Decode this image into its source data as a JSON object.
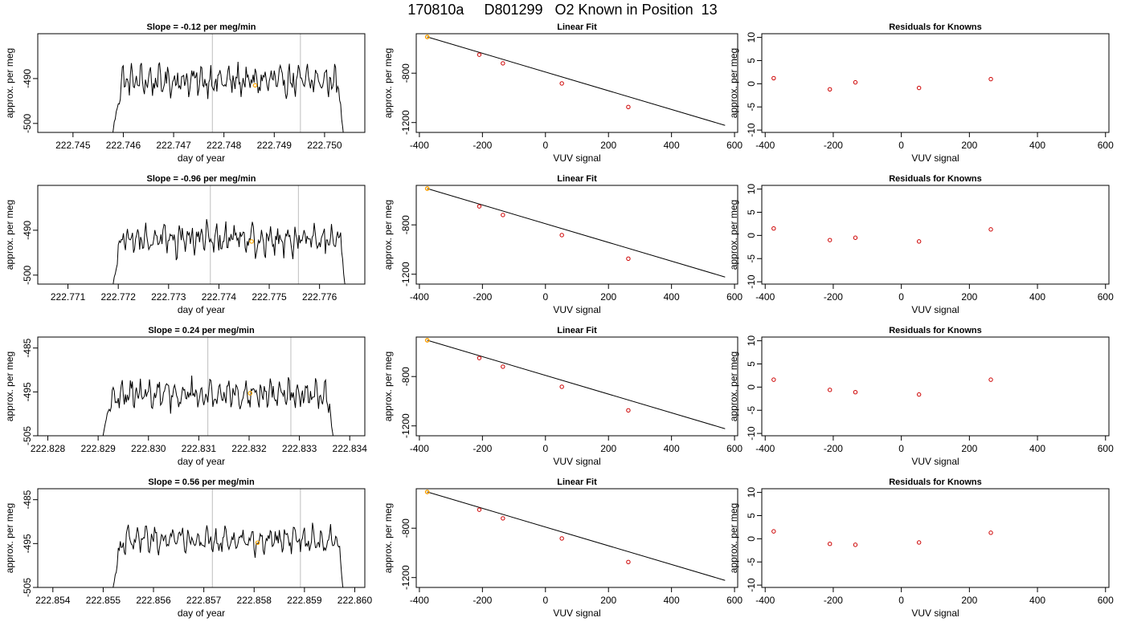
{
  "page_title": "170810a     D801299   O2 Known in Position  13",
  "chart_data": [
    {
      "type": "line",
      "panel": "timeseries",
      "title": "Slope =  -0.12  per meg/min",
      "xlabel": "day of year",
      "ylabel": "approx. per meg",
      "xlim": [
        222.7443,
        222.7508
      ],
      "ylim": [
        -502,
        -480
      ],
      "xticks": [
        "222.745",
        "222.746",
        "222.747",
        "222.748",
        "222.749",
        "222.750"
      ],
      "yticks": [
        "-490",
        "-500"
      ],
      "vlines": [
        222.74777,
        222.74952
      ],
      "series_start": 222.74578,
      "series_end": 222.75038,
      "series_mean": -490.5,
      "series_amp": 2.8,
      "highlight_point": {
        "x": 222.74862,
        "y": -491.5
      },
      "grid": false,
      "line_color": "#000000",
      "vline_color": "#bebebe",
      "highlight_color": "#ffa500"
    },
    {
      "type": "scatter",
      "panel": "fit",
      "title": "Linear Fit",
      "xlabel": "VUV signal",
      "ylabel": "approx. per meg",
      "xlim": [
        -410,
        610
      ],
      "ylim": [
        -1280,
        -480
      ],
      "xticks": [
        "-400",
        "-200",
        "0",
        "200",
        "400",
        "600"
      ],
      "yticks": [
        "-800",
        "-1200"
      ],
      "points": {
        "x": [
          -375,
          -210,
          -135,
          52,
          263
        ],
        "y": [
          -506,
          -650,
          -720,
          -883,
          -1074
        ]
      },
      "fit_line": {
        "x": [
          -375,
          570
        ],
        "y": [
          -506,
          -1223
        ]
      },
      "highlight_point": {
        "x": -375,
        "y": -506
      },
      "point_color": "#cd0000",
      "highlight_color": "#ffa500",
      "line_color": "#000000"
    },
    {
      "type": "scatter",
      "panel": "residuals",
      "title": "Residuals for Knowns",
      "xlabel": "VUV signal",
      "ylabel": "approx. per meg",
      "xlim": [
        -410,
        610
      ],
      "ylim": [
        -10.5,
        10.8
      ],
      "xticks": [
        "-400",
        "-200",
        "0",
        "200",
        "400",
        "600"
      ],
      "yticks": [
        "10",
        "5",
        "0",
        "-5",
        "-10"
      ],
      "points": {
        "x": [
          -375,
          -210,
          -135,
          52,
          263
        ],
        "y": [
          1.2,
          -1.2,
          0.3,
          -0.9,
          1.0
        ]
      },
      "point_color": "#cd0000"
    },
    {
      "type": "line",
      "panel": "timeseries",
      "title": "Slope =  -0.96  per meg/min",
      "xlabel": "day of year",
      "ylabel": "approx. per meg",
      "xlim": [
        222.7704,
        222.7769
      ],
      "ylim": [
        -502,
        -480
      ],
      "xticks": [
        "222.771",
        "222.772",
        "222.773",
        "222.774",
        "222.775",
        "222.776"
      ],
      "yticks": [
        "-490",
        "-500"
      ],
      "vlines": [
        222.77383,
        222.77558
      ],
      "series_start": 222.77188,
      "series_end": 222.77652,
      "series_mean": -492.0,
      "series_amp": 3.0,
      "highlight_point": {
        "x": 222.77465,
        "y": -492.5
      },
      "grid": false,
      "line_color": "#000000",
      "vline_color": "#bebebe",
      "highlight_color": "#ffa500"
    },
    {
      "type": "scatter",
      "panel": "fit",
      "title": "Linear Fit",
      "xlabel": "VUV signal",
      "ylabel": "approx. per meg",
      "xlim": [
        -410,
        610
      ],
      "ylim": [
        -1280,
        -480
      ],
      "xticks": [
        "-400",
        "-200",
        "0",
        "200",
        "400",
        "600"
      ],
      "yticks": [
        "-800",
        "-1200"
      ],
      "points": {
        "x": [
          -375,
          -210,
          -135,
          52,
          263
        ],
        "y": [
          -506,
          -650,
          -720,
          -883,
          -1074
        ]
      },
      "fit_line": {
        "x": [
          -375,
          570
        ],
        "y": [
          -506,
          -1223
        ]
      },
      "highlight_point": {
        "x": -375,
        "y": -506
      },
      "point_color": "#cd0000",
      "highlight_color": "#ffa500",
      "line_color": "#000000"
    },
    {
      "type": "scatter",
      "panel": "residuals",
      "title": "Residuals for Knowns",
      "xlabel": "VUV signal",
      "ylabel": "approx. per meg",
      "xlim": [
        -410,
        610
      ],
      "ylim": [
        -10.5,
        10.8
      ],
      "xticks": [
        "-400",
        "-200",
        "0",
        "200",
        "400",
        "600"
      ],
      "yticks": [
        "10",
        "5",
        "0",
        "-5",
        "-10"
      ],
      "points": {
        "x": [
          -375,
          -210,
          -135,
          52,
          263
        ],
        "y": [
          1.5,
          -1.0,
          -0.5,
          -1.3,
          1.3
        ]
      },
      "point_color": "#cd0000"
    },
    {
      "type": "line",
      "panel": "timeseries",
      "title": "Slope =  0.24  per meg/min",
      "xlabel": "day of year",
      "ylabel": "approx. per meg",
      "xlim": [
        222.8278,
        222.8343
      ],
      "ylim": [
        -505,
        -482.5
      ],
      "xticks": [
        "222.828",
        "222.829",
        "222.830",
        "222.831",
        "222.832",
        "222.833",
        "222.834"
      ],
      "yticks": [
        "-485",
        "-495",
        "-505"
      ],
      "vlines": [
        222.83118,
        222.83283
      ],
      "series_start": 222.82908,
      "series_end": 222.83368,
      "series_mean": -495.5,
      "series_amp": 2.8,
      "highlight_point": {
        "x": 222.83202,
        "y": -495.3
      },
      "grid": false,
      "line_color": "#000000",
      "vline_color": "#bebebe",
      "highlight_color": "#ffa500"
    },
    {
      "type": "scatter",
      "panel": "fit",
      "title": "Linear Fit",
      "xlabel": "VUV signal",
      "ylabel": "approx. per meg",
      "xlim": [
        -410,
        610
      ],
      "ylim": [
        -1280,
        -480
      ],
      "xticks": [
        "-400",
        "-200",
        "0",
        "200",
        "400",
        "600"
      ],
      "yticks": [
        "-800",
        "-1200"
      ],
      "points": {
        "x": [
          -375,
          -210,
          -135,
          52,
          263
        ],
        "y": [
          -506,
          -650,
          -720,
          -883,
          -1074
        ]
      },
      "fit_line": {
        "x": [
          -375,
          570
        ],
        "y": [
          -506,
          -1223
        ]
      },
      "highlight_point": {
        "x": -375,
        "y": -506
      },
      "point_color": "#cd0000",
      "highlight_color": "#ffa500",
      "line_color": "#000000"
    },
    {
      "type": "scatter",
      "panel": "residuals",
      "title": "Residuals for Knowns",
      "xlabel": "VUV signal",
      "ylabel": "approx. per meg",
      "xlim": [
        -410,
        610
      ],
      "ylim": [
        -10.5,
        10.8
      ],
      "xticks": [
        "-400",
        "-200",
        "0",
        "200",
        "400",
        "600"
      ],
      "yticks": [
        "10",
        "5",
        "0",
        "-5",
        "-10"
      ],
      "points": {
        "x": [
          -375,
          -210,
          -135,
          52,
          263
        ],
        "y": [
          1.6,
          -0.6,
          -1.1,
          -1.6,
          1.6
        ]
      },
      "point_color": "#cd0000"
    },
    {
      "type": "line",
      "panel": "timeseries",
      "title": "Slope =  0.56  per meg/min",
      "xlabel": "day of year",
      "ylabel": "approx. per meg",
      "xlim": [
        222.8537,
        222.8602
      ],
      "ylim": [
        -505,
        -482.5
      ],
      "xticks": [
        "222.854",
        "222.855",
        "222.856",
        "222.857",
        "222.858",
        "222.859",
        "222.860"
      ],
      "yticks": [
        "-485",
        "-495",
        "-505"
      ],
      "vlines": [
        222.85717,
        222.85892
      ],
      "series_start": 222.85518,
      "series_end": 222.85978,
      "series_mean": -494.2,
      "series_amp": 2.6,
      "highlight_point": {
        "x": 222.85807,
        "y": -494.8
      },
      "grid": false,
      "line_color": "#000000",
      "vline_color": "#bebebe",
      "highlight_color": "#ffa500"
    },
    {
      "type": "scatter",
      "panel": "fit",
      "title": "Linear Fit",
      "xlabel": "VUV signal",
      "ylabel": "approx. per meg",
      "xlim": [
        -410,
        610
      ],
      "ylim": [
        -1280,
        -480
      ],
      "xticks": [
        "-400",
        "-200",
        "0",
        "200",
        "400",
        "600"
      ],
      "yticks": [
        "-800",
        "-1200"
      ],
      "points": {
        "x": [
          -375,
          -210,
          -135,
          52,
          263
        ],
        "y": [
          -506,
          -650,
          -720,
          -883,
          -1074
        ]
      },
      "fit_line": {
        "x": [
          -375,
          570
        ],
        "y": [
          -506,
          -1223
        ]
      },
      "highlight_point": {
        "x": -375,
        "y": -506
      },
      "point_color": "#cd0000",
      "highlight_color": "#ffa500",
      "line_color": "#000000"
    },
    {
      "type": "scatter",
      "panel": "residuals",
      "title": "Residuals for Knowns",
      "xlabel": "VUV signal",
      "ylabel": "approx. per meg",
      "xlim": [
        -410,
        610
      ],
      "ylim": [
        -10.5,
        10.8
      ],
      "xticks": [
        "-400",
        "-200",
        "0",
        "200",
        "400",
        "600"
      ],
      "yticks": [
        "10",
        "5",
        "0",
        "-5",
        "-10"
      ],
      "points": {
        "x": [
          -375,
          -210,
          -135,
          52,
          263
        ],
        "y": [
          1.6,
          -1.1,
          -1.3,
          -0.8,
          1.3
        ]
      },
      "point_color": "#cd0000"
    }
  ]
}
